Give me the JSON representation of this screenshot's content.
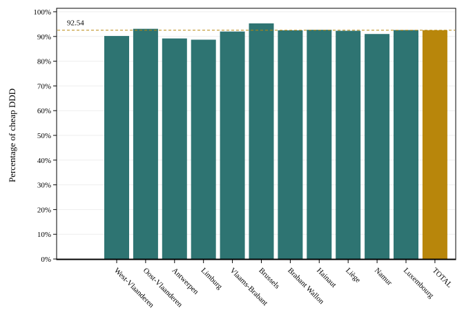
{
  "chart_data": {
    "type": "bar",
    "ylabel": "Percentage of cheap DDD",
    "ylim": [
      0,
      100
    ],
    "y_ticks": [
      "0%",
      "10%",
      "20%",
      "30%",
      "40%",
      "50%",
      "60%",
      "70%",
      "80%",
      "90%",
      "100%"
    ],
    "y_tick_values": [
      0,
      10,
      20,
      30,
      40,
      50,
      60,
      70,
      80,
      90,
      100
    ],
    "categories": [
      "West-Vlaanderen",
      "Oost-Vlaanderen",
      "Antwerpen",
      "Limburg",
      "Vlaams-Brabant",
      "Brussels",
      "Brabant Wallon",
      "Hainaut",
      "Liège",
      "Namur",
      "Luxembourg",
      "TOTAL"
    ],
    "values": [
      90.2,
      93.1,
      89.2,
      88.7,
      92.0,
      95.3,
      92.5,
      92.7,
      92.3,
      91.0,
      92.6,
      92.54
    ],
    "reference_line": {
      "value": 92.54,
      "label": "92.54",
      "color": "#b8860b",
      "style": "dashed"
    },
    "colors": {
      "bar": "#2e7472",
      "total_bar": "#b8860b",
      "grid": "#eeeeee"
    },
    "grid": true,
    "legend": "none"
  }
}
